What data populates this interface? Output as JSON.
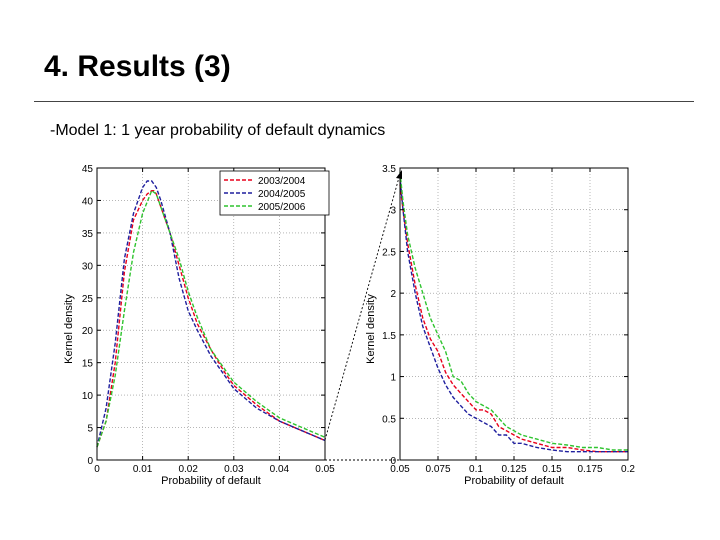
{
  "slide": {
    "title": "4. Results (3)",
    "subtitle": "-Model 1: 1 year probability of default dynamics"
  },
  "colors": {
    "series_2003_2004": "#e8001c",
    "series_2004_2005": "#1f1f9e",
    "series_2005_2006": "#2fc42f",
    "axis": "#000000",
    "grid": "#8a8a8a"
  },
  "chart_data": [
    {
      "type": "line",
      "xlabel": "Probability of default",
      "ylabel": "Kernel density",
      "xlim": [
        0,
        0.05
      ],
      "ylim": [
        0,
        45
      ],
      "xticks": [
        "0",
        "0.01",
        "0.02",
        "0.03",
        "0.04",
        "0.05"
      ],
      "yticks": [
        "0",
        "5",
        "10",
        "15",
        "20",
        "25",
        "30",
        "35",
        "40",
        "45"
      ],
      "grid": true,
      "legend_position": "top-right",
      "series": [
        {
          "name": "2003/2004",
          "style": "dashed",
          "x": [
            0,
            0.002,
            0.004,
            0.006,
            0.008,
            0.01,
            0.011,
            0.012,
            0.0125,
            0.013,
            0.014,
            0.016,
            0.018,
            0.02,
            0.022,
            0.025,
            0.028,
            0.03,
            0.035,
            0.04,
            0.045,
            0.05
          ],
          "y": [
            2,
            6,
            15,
            29,
            37,
            40,
            41,
            41.5,
            41.5,
            41,
            39,
            35,
            30,
            25,
            21,
            17,
            13.5,
            11.5,
            8.5,
            6,
            4.5,
            3
          ]
        },
        {
          "name": "2004/2005",
          "style": "dashed",
          "x": [
            0,
            0.002,
            0.004,
            0.006,
            0.008,
            0.01,
            0.011,
            0.012,
            0.013,
            0.014,
            0.016,
            0.018,
            0.02,
            0.022,
            0.025,
            0.028,
            0.03,
            0.035,
            0.04,
            0.045,
            0.05
          ],
          "y": [
            2,
            8,
            18,
            31,
            38,
            42,
            43,
            43,
            42,
            40,
            35,
            28,
            23,
            20,
            16,
            13,
            11,
            8,
            6,
            4.5,
            3
          ]
        },
        {
          "name": "2005/2006",
          "style": "dashed",
          "x": [
            0,
            0.002,
            0.004,
            0.006,
            0.008,
            0.01,
            0.012,
            0.013,
            0.014,
            0.015,
            0.016,
            0.018,
            0.02,
            0.022,
            0.025,
            0.028,
            0.03,
            0.035,
            0.04,
            0.045,
            0.05
          ],
          "y": [
            2,
            6,
            13,
            23,
            32,
            38,
            41.5,
            41,
            39,
            37,
            35,
            31,
            26,
            22,
            17,
            14,
            12,
            9,
            6.5,
            5,
            3.5
          ]
        }
      ]
    },
    {
      "type": "line",
      "xlabel": "Probability of default",
      "ylabel": "Kernel density",
      "xlim": [
        0.05,
        0.2
      ],
      "ylim": [
        0,
        3.5
      ],
      "xticks": [
        "0.05",
        "0.075",
        "0.1",
        "0.125",
        "0.15",
        "0.175",
        "0.2"
      ],
      "yticks": [
        "0",
        "0.5",
        "1",
        "1.5",
        "2",
        "2.5",
        "3",
        "3.5"
      ],
      "grid": true,
      "series": [
        {
          "name": "2003/2004",
          "style": "dashed",
          "x": [
            0.05,
            0.052,
            0.055,
            0.06,
            0.065,
            0.07,
            0.075,
            0.08,
            0.085,
            0.09,
            0.095,
            0.1,
            0.105,
            0.11,
            0.115,
            0.12,
            0.125,
            0.13,
            0.14,
            0.15,
            0.16,
            0.17,
            0.18,
            0.19,
            0.2
          ],
          "y": [
            3.3,
            3.0,
            2.6,
            2.1,
            1.7,
            1.45,
            1.3,
            1.05,
            0.9,
            0.8,
            0.7,
            0.6,
            0.6,
            0.55,
            0.4,
            0.35,
            0.3,
            0.25,
            0.2,
            0.15,
            0.15,
            0.12,
            0.1,
            0.1,
            0.1
          ]
        },
        {
          "name": "2004/2005",
          "style": "dashed",
          "x": [
            0.05,
            0.052,
            0.055,
            0.06,
            0.065,
            0.07,
            0.075,
            0.08,
            0.085,
            0.09,
            0.095,
            0.1,
            0.105,
            0.11,
            0.115,
            0.12,
            0.125,
            0.13,
            0.14,
            0.15,
            0.16,
            0.17,
            0.18,
            0.19,
            0.2
          ],
          "y": [
            3.4,
            3.0,
            2.5,
            2.0,
            1.6,
            1.35,
            1.1,
            0.9,
            0.75,
            0.65,
            0.55,
            0.5,
            0.45,
            0.4,
            0.3,
            0.3,
            0.2,
            0.2,
            0.15,
            0.12,
            0.1,
            0.1,
            0.1,
            0.1,
            0.1
          ]
        },
        {
          "name": "2005/2006",
          "style": "dashed",
          "x": [
            0.05,
            0.052,
            0.055,
            0.06,
            0.065,
            0.07,
            0.075,
            0.08,
            0.085,
            0.09,
            0.095,
            0.1,
            0.105,
            0.11,
            0.115,
            0.12,
            0.125,
            0.13,
            0.14,
            0.15,
            0.16,
            0.17,
            0.18,
            0.19,
            0.2
          ],
          "y": [
            3.45,
            3.1,
            2.7,
            2.3,
            2.0,
            1.7,
            1.5,
            1.3,
            1.0,
            0.95,
            0.8,
            0.7,
            0.65,
            0.6,
            0.5,
            0.4,
            0.35,
            0.3,
            0.25,
            0.2,
            0.18,
            0.15,
            0.15,
            0.12,
            0.12
          ]
        }
      ]
    }
  ]
}
